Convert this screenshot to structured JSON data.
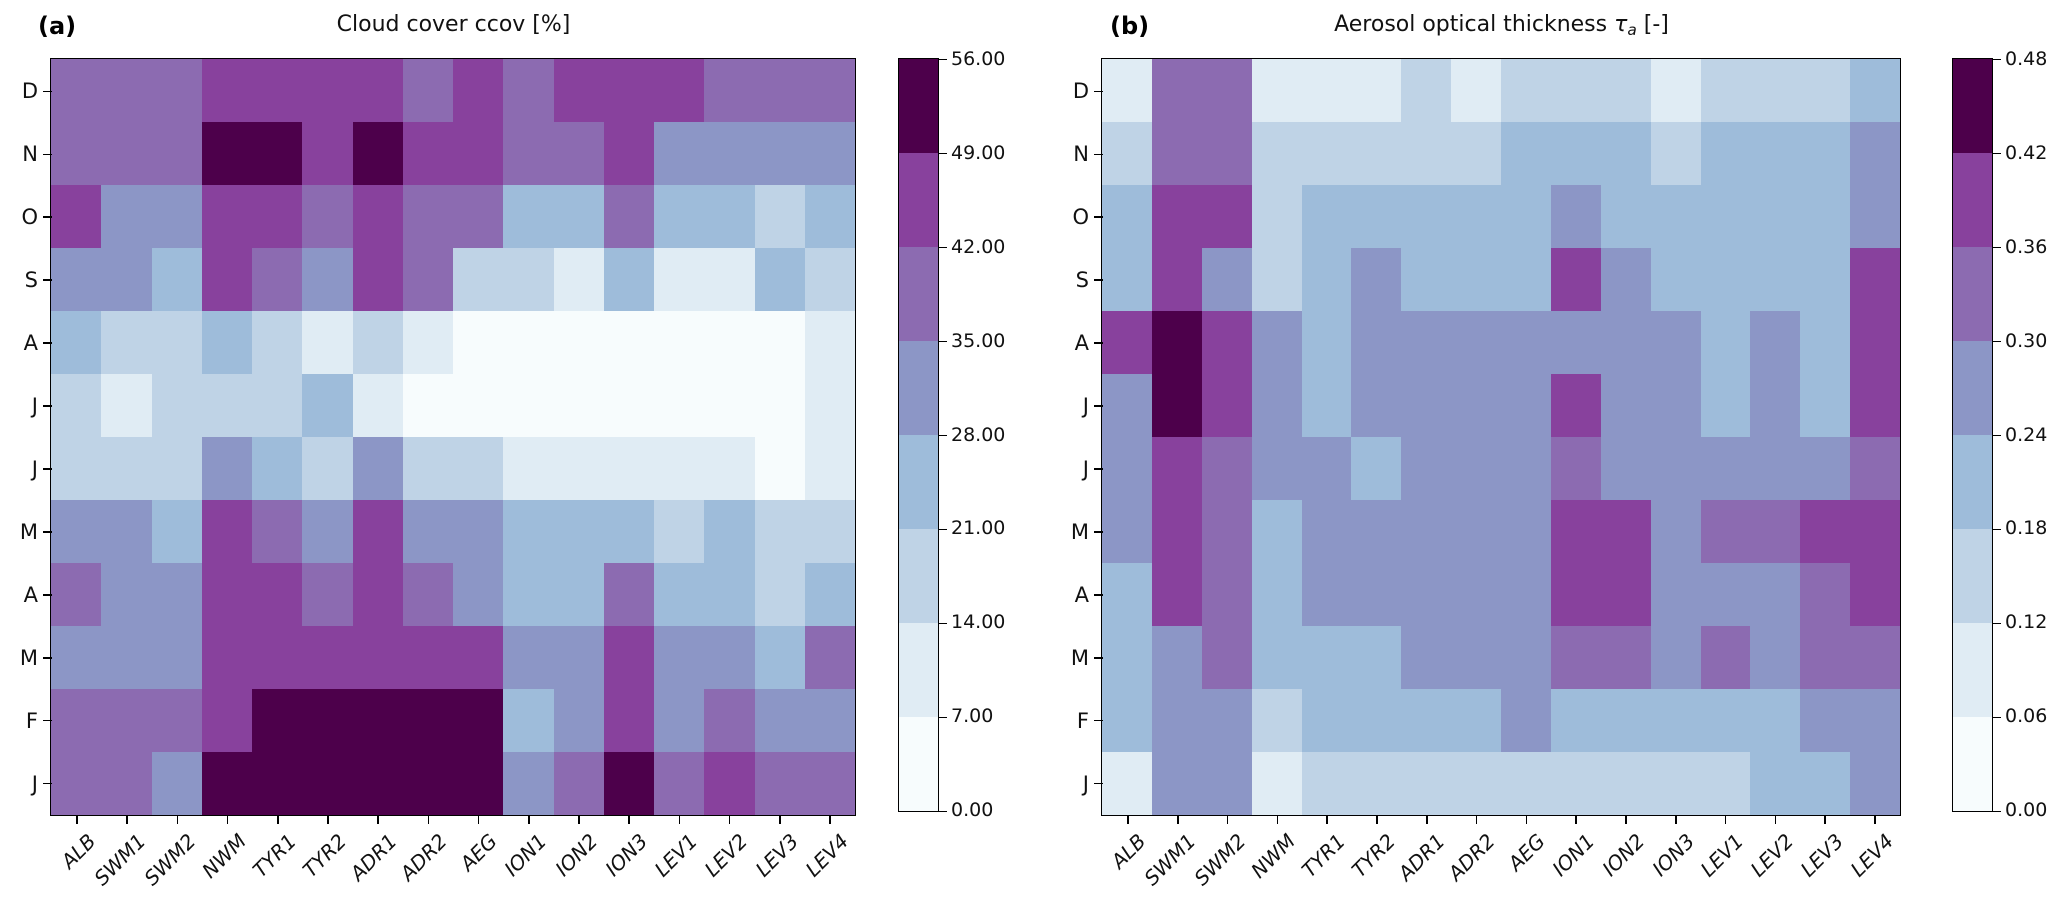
{
  "figure": {
    "background": "#ffffff"
  },
  "palette": {
    "name": "BuPu-8",
    "colors": [
      "#f7fcfd",
      "#e0ecf4",
      "#bfd3e6",
      "#9ebcda",
      "#8c96c6",
      "#8c6bb1",
      "#88419d",
      "#4d004b"
    ]
  },
  "panels": [
    {
      "label": "(a)",
      "title": "Cloud cover ccov [%]",
      "colorbar_ticks": [
        "56.00",
        "49.00",
        "42.00",
        "35.00",
        "28.00",
        "21.00",
        "14.00",
        "7.00",
        "0.00"
      ]
    },
    {
      "label": "(b)",
      "title_prefix": "Aerosol optical thickness ",
      "title_tau": "τ",
      "title_sub": "a",
      "title_suffix": " [-]",
      "colorbar_ticks": [
        "0.48",
        "0.42",
        "0.36",
        "0.30",
        "0.24",
        "0.18",
        "0.12",
        "0.06",
        "0.00"
      ]
    }
  ],
  "chart_data": [
    {
      "type": "heatmap",
      "title": "Cloud cover ccov [%]",
      "x_categories": [
        "ALB",
        "SWM1",
        "SWM2",
        "NWM",
        "TYR1",
        "TYR2",
        "ADR1",
        "ADR2",
        "AEG",
        "ION1",
        "ION2",
        "ION3",
        "LEV1",
        "LEV2",
        "LEV3",
        "LEV4"
      ],
      "y_categories": [
        "D",
        "N",
        "O",
        "S",
        "A",
        "J",
        "J",
        "M",
        "A",
        "M",
        "F",
        "J"
      ],
      "vmin": 0,
      "vmax": 56,
      "bin_width": 7,
      "legend_position": "right-colorbar",
      "grid": false,
      "values": [
        [
          38.5,
          38.5,
          38.5,
          45.5,
          45.5,
          45.5,
          45.5,
          38.5,
          45.5,
          38.5,
          45.5,
          45.5,
          45.5,
          38.5,
          38.5,
          38.5
        ],
        [
          38.5,
          38.5,
          38.5,
          52.5,
          52.5,
          45.5,
          52.5,
          45.5,
          45.5,
          38.5,
          38.5,
          45.5,
          31.5,
          31.5,
          31.5,
          31.5
        ],
        [
          45.5,
          31.5,
          31.5,
          45.5,
          45.5,
          38.5,
          45.5,
          38.5,
          38.5,
          24.5,
          24.5,
          38.5,
          24.5,
          24.5,
          17.5,
          24.5
        ],
        [
          31.5,
          31.5,
          24.5,
          45.5,
          38.5,
          31.5,
          45.5,
          38.5,
          17.5,
          17.5,
          10.5,
          24.5,
          10.5,
          10.5,
          24.5,
          17.5
        ],
        [
          24.5,
          17.5,
          17.5,
          24.5,
          17.5,
          10.5,
          17.5,
          10.5,
          3.5,
          3.5,
          3.5,
          3.5,
          3.5,
          3.5,
          3.5,
          10.5
        ],
        [
          17.5,
          10.5,
          17.5,
          17.5,
          17.5,
          24.5,
          10.5,
          3.5,
          3.5,
          3.5,
          3.5,
          3.5,
          3.5,
          3.5,
          3.5,
          10.5
        ],
        [
          17.5,
          17.5,
          17.5,
          31.5,
          24.5,
          17.5,
          31.5,
          17.5,
          17.5,
          10.5,
          10.5,
          10.5,
          10.5,
          10.5,
          3.5,
          10.5
        ],
        [
          31.5,
          31.5,
          24.5,
          45.5,
          38.5,
          31.5,
          45.5,
          31.5,
          31.5,
          24.5,
          24.5,
          24.5,
          17.5,
          24.5,
          17.5,
          17.5
        ],
        [
          38.5,
          31.5,
          31.5,
          45.5,
          45.5,
          38.5,
          45.5,
          38.5,
          31.5,
          24.5,
          24.5,
          38.5,
          24.5,
          24.5,
          17.5,
          24.5
        ],
        [
          31.5,
          31.5,
          31.5,
          45.5,
          45.5,
          45.5,
          45.5,
          45.5,
          45.5,
          31.5,
          31.5,
          45.5,
          31.5,
          31.5,
          24.5,
          38.5
        ],
        [
          38.5,
          38.5,
          38.5,
          45.5,
          52.5,
          52.5,
          52.5,
          52.5,
          52.5,
          24.5,
          31.5,
          45.5,
          31.5,
          38.5,
          31.5,
          31.5
        ],
        [
          38.5,
          38.5,
          31.5,
          52.5,
          52.5,
          52.5,
          52.5,
          52.5,
          52.5,
          31.5,
          38.5,
          52.5,
          38.5,
          45.5,
          38.5,
          38.5
        ]
      ]
    },
    {
      "type": "heatmap",
      "title": "Aerosol optical thickness τa [-]",
      "x_categories": [
        "ALB",
        "SWM1",
        "SWM2",
        "NWM",
        "TYR1",
        "TYR2",
        "ADR1",
        "ADR2",
        "AEG",
        "ION1",
        "ION2",
        "ION3",
        "LEV1",
        "LEV2",
        "LEV3",
        "LEV4"
      ],
      "y_categories": [
        "D",
        "N",
        "O",
        "S",
        "A",
        "J",
        "J",
        "M",
        "A",
        "M",
        "F",
        "J"
      ],
      "vmin": 0,
      "vmax": 0.48,
      "bin_width": 0.06,
      "legend_position": "right-colorbar",
      "grid": false,
      "values": [
        [
          0.09,
          0.33,
          0.33,
          0.09,
          0.09,
          0.09,
          0.15,
          0.09,
          0.15,
          0.15,
          0.15,
          0.09,
          0.15,
          0.15,
          0.15,
          0.21
        ],
        [
          0.15,
          0.33,
          0.33,
          0.15,
          0.15,
          0.15,
          0.15,
          0.15,
          0.21,
          0.21,
          0.21,
          0.15,
          0.21,
          0.21,
          0.21,
          0.27
        ],
        [
          0.21,
          0.39,
          0.39,
          0.15,
          0.21,
          0.21,
          0.21,
          0.21,
          0.21,
          0.27,
          0.21,
          0.21,
          0.21,
          0.21,
          0.21,
          0.27
        ],
        [
          0.21,
          0.39,
          0.27,
          0.15,
          0.21,
          0.27,
          0.21,
          0.21,
          0.21,
          0.39,
          0.27,
          0.21,
          0.21,
          0.21,
          0.21,
          0.39
        ],
        [
          0.39,
          0.45,
          0.39,
          0.27,
          0.21,
          0.27,
          0.27,
          0.27,
          0.27,
          0.27,
          0.27,
          0.27,
          0.21,
          0.27,
          0.21,
          0.39
        ],
        [
          0.27,
          0.45,
          0.39,
          0.27,
          0.21,
          0.27,
          0.27,
          0.27,
          0.27,
          0.39,
          0.27,
          0.27,
          0.21,
          0.27,
          0.21,
          0.39
        ],
        [
          0.27,
          0.39,
          0.33,
          0.27,
          0.27,
          0.21,
          0.27,
          0.27,
          0.27,
          0.33,
          0.27,
          0.27,
          0.27,
          0.27,
          0.27,
          0.33
        ],
        [
          0.27,
          0.39,
          0.33,
          0.21,
          0.27,
          0.27,
          0.27,
          0.27,
          0.27,
          0.39,
          0.39,
          0.27,
          0.33,
          0.33,
          0.39,
          0.39
        ],
        [
          0.21,
          0.39,
          0.33,
          0.21,
          0.27,
          0.27,
          0.27,
          0.27,
          0.27,
          0.39,
          0.39,
          0.27,
          0.27,
          0.27,
          0.33,
          0.39
        ],
        [
          0.21,
          0.27,
          0.33,
          0.21,
          0.21,
          0.21,
          0.27,
          0.27,
          0.27,
          0.33,
          0.33,
          0.27,
          0.33,
          0.27,
          0.33,
          0.33
        ],
        [
          0.21,
          0.27,
          0.27,
          0.15,
          0.21,
          0.21,
          0.21,
          0.21,
          0.27,
          0.21,
          0.21,
          0.21,
          0.21,
          0.21,
          0.27,
          0.27
        ],
        [
          0.09,
          0.27,
          0.27,
          0.09,
          0.15,
          0.15,
          0.15,
          0.15,
          0.15,
          0.15,
          0.15,
          0.15,
          0.15,
          0.21,
          0.21,
          0.27
        ]
      ]
    }
  ]
}
